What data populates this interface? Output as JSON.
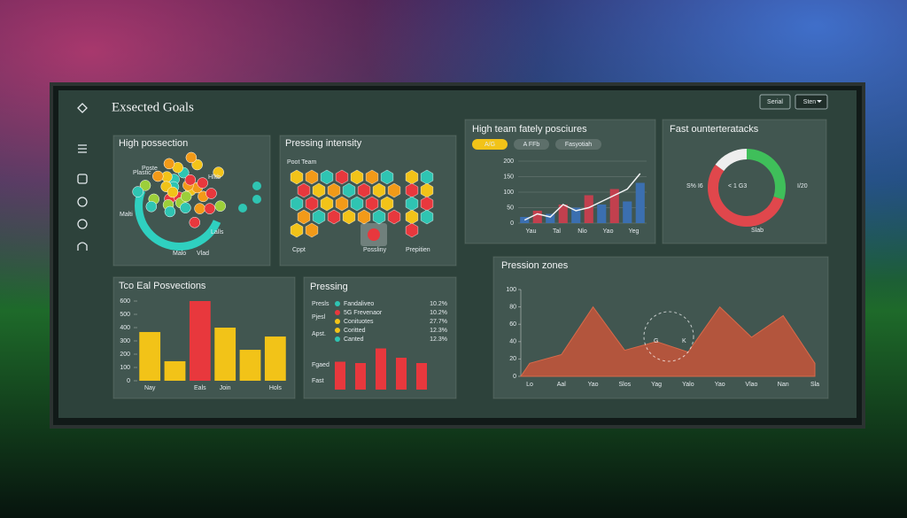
{
  "header": {
    "title": "Exsected Goals",
    "buttons": [
      "Serial",
      "Sten"
    ]
  },
  "possession": {
    "title": "High possection",
    "labels": [
      "Plastic",
      "Poste",
      "Hlltb",
      "Malti",
      "Lalls",
      "Malo",
      "Vlad"
    ]
  },
  "pressing_intensity": {
    "title": "Pressing intensity",
    "labels": [
      "Poot Team",
      "Cppt",
      "Possliny",
      "Prepitien"
    ]
  },
  "chart_data": [
    {
      "type": "bar-line",
      "title": "High team fately posciures",
      "tabs": [
        "A/G",
        "A FFb",
        "Fasyotiah"
      ],
      "categories": [
        "Yau",
        null,
        "Tal",
        null,
        "Nlo",
        null,
        "Yao",
        null,
        "Yeg",
        null
      ],
      "values": [
        20,
        40,
        30,
        60,
        50,
        90,
        60,
        110,
        70,
        130
      ],
      "colors": [
        "#3b6fb0",
        "#c2404e",
        "#3b6fb0",
        "#c2404e",
        "#3b6fb0",
        "#c2404e",
        "#3b6fb0",
        "#c2404e",
        "#3b6fb0",
        "#3b6fb0"
      ],
      "line_values": [
        10,
        30,
        20,
        60,
        40,
        50,
        70,
        90,
        110,
        160
      ],
      "line_color": "#f2f4f5",
      "ylim": [
        0,
        200
      ],
      "yticks": [
        0,
        50,
        100,
        150,
        200
      ]
    },
    {
      "type": "donut",
      "title": "Fast ounterteratacks",
      "values": [
        30,
        55,
        15
      ],
      "colors": [
        "#3fbf5a",
        "#e0474c",
        "#eeeeee"
      ],
      "annotations": [
        "S% I6",
        "< 1 G3",
        "I/20",
        "Slab"
      ]
    },
    {
      "type": "bar",
      "title": "Tco Eal Posvections",
      "categories": [
        "Nay",
        null,
        "Eals",
        "Join",
        null,
        "Hols"
      ],
      "values": [
        367,
        147,
        600,
        400,
        233,
        333
      ],
      "colors": [
        "#f2c318",
        "#f2c318",
        "#e8383d",
        "#f2c318",
        "#f2c318",
        "#f2c318"
      ],
      "ylim": [
        0,
        600
      ],
      "yticks": [
        0,
        100,
        200,
        300,
        400,
        500,
        600
      ]
    },
    {
      "type": "pressing",
      "title": "Pressing",
      "row_labels": [
        "Presls",
        "Pjesl",
        "Apst.",
        "Fgaed",
        "Fast"
      ],
      "legend": [
        {
          "name": "Fandaliveo",
          "color": "#2fc4b2",
          "label": "10.2%"
        },
        {
          "name": "5G Frevenaor",
          "color": "#e8383d",
          "label": "10.2%"
        },
        {
          "name": "Conituotes",
          "color": "#f2c318",
          "label": "27.7%"
        },
        {
          "name": "Coritted",
          "color": "#f2c318",
          "label": "12.3%"
        },
        {
          "name": "Canted",
          "color": "#2fc4b2",
          "label": "12.3%"
        }
      ],
      "values": [
        42,
        40,
        62,
        48,
        40
      ],
      "color": "#e8383d"
    },
    {
      "type": "area",
      "title": "Pression zones",
      "categories": [
        "Lo",
        "Aal",
        "Yao",
        "Slos",
        "Yag",
        "Yalo",
        "Yao",
        "Vlao",
        "Nan",
        "Sla"
      ],
      "values": [
        15,
        25,
        80,
        30,
        40,
        28,
        80,
        45,
        70,
        15
      ],
      "color": "#c8553a",
      "annotations": [
        "G",
        "K"
      ],
      "ylim": [
        0,
        100
      ],
      "yticks": [
        0,
        20,
        40,
        60,
        80,
        100
      ]
    }
  ]
}
